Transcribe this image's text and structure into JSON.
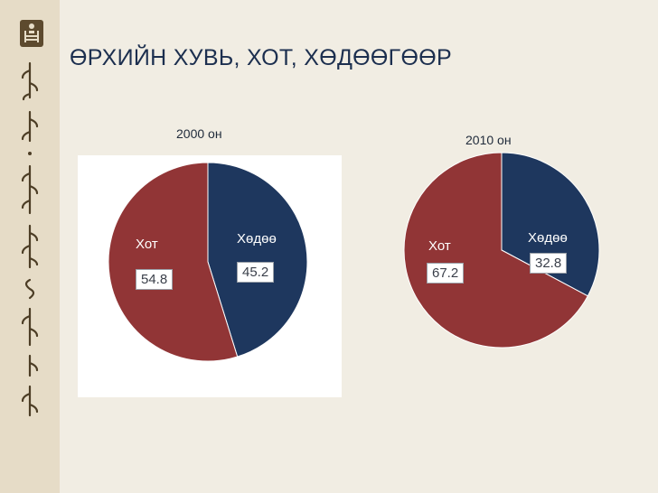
{
  "slide": {
    "title": "ӨРХИЙН ХУВЬ, ХОТ, ХӨДӨӨГӨӨР"
  },
  "colors": {
    "urban": "#913536",
    "rural": "#1e375e",
    "background": "#f1ede3",
    "sidebar": "#e6dcc7"
  },
  "icons": {
    "emblem": "soyombo-emblem-icon",
    "sidebar": "mongolian-script-decoration"
  },
  "chart_data": [
    {
      "type": "pie",
      "title": "2000 он",
      "slices": [
        {
          "label": "Хөдөө",
          "value": 45.2,
          "value_text": "45.2",
          "color": "#1e375e"
        },
        {
          "label": "Хот",
          "value": 54.8,
          "value_text": "54.8",
          "color": "#913536"
        }
      ],
      "legend": "none"
    },
    {
      "type": "pie",
      "title": "2010 он",
      "slices": [
        {
          "label": "Хөдөө",
          "value": 32.8,
          "value_text": "32.8",
          "color": "#1e375e"
        },
        {
          "label": "Хот",
          "value": 67.2,
          "value_text": "67.2",
          "color": "#913536"
        }
      ],
      "legend": "none"
    }
  ]
}
